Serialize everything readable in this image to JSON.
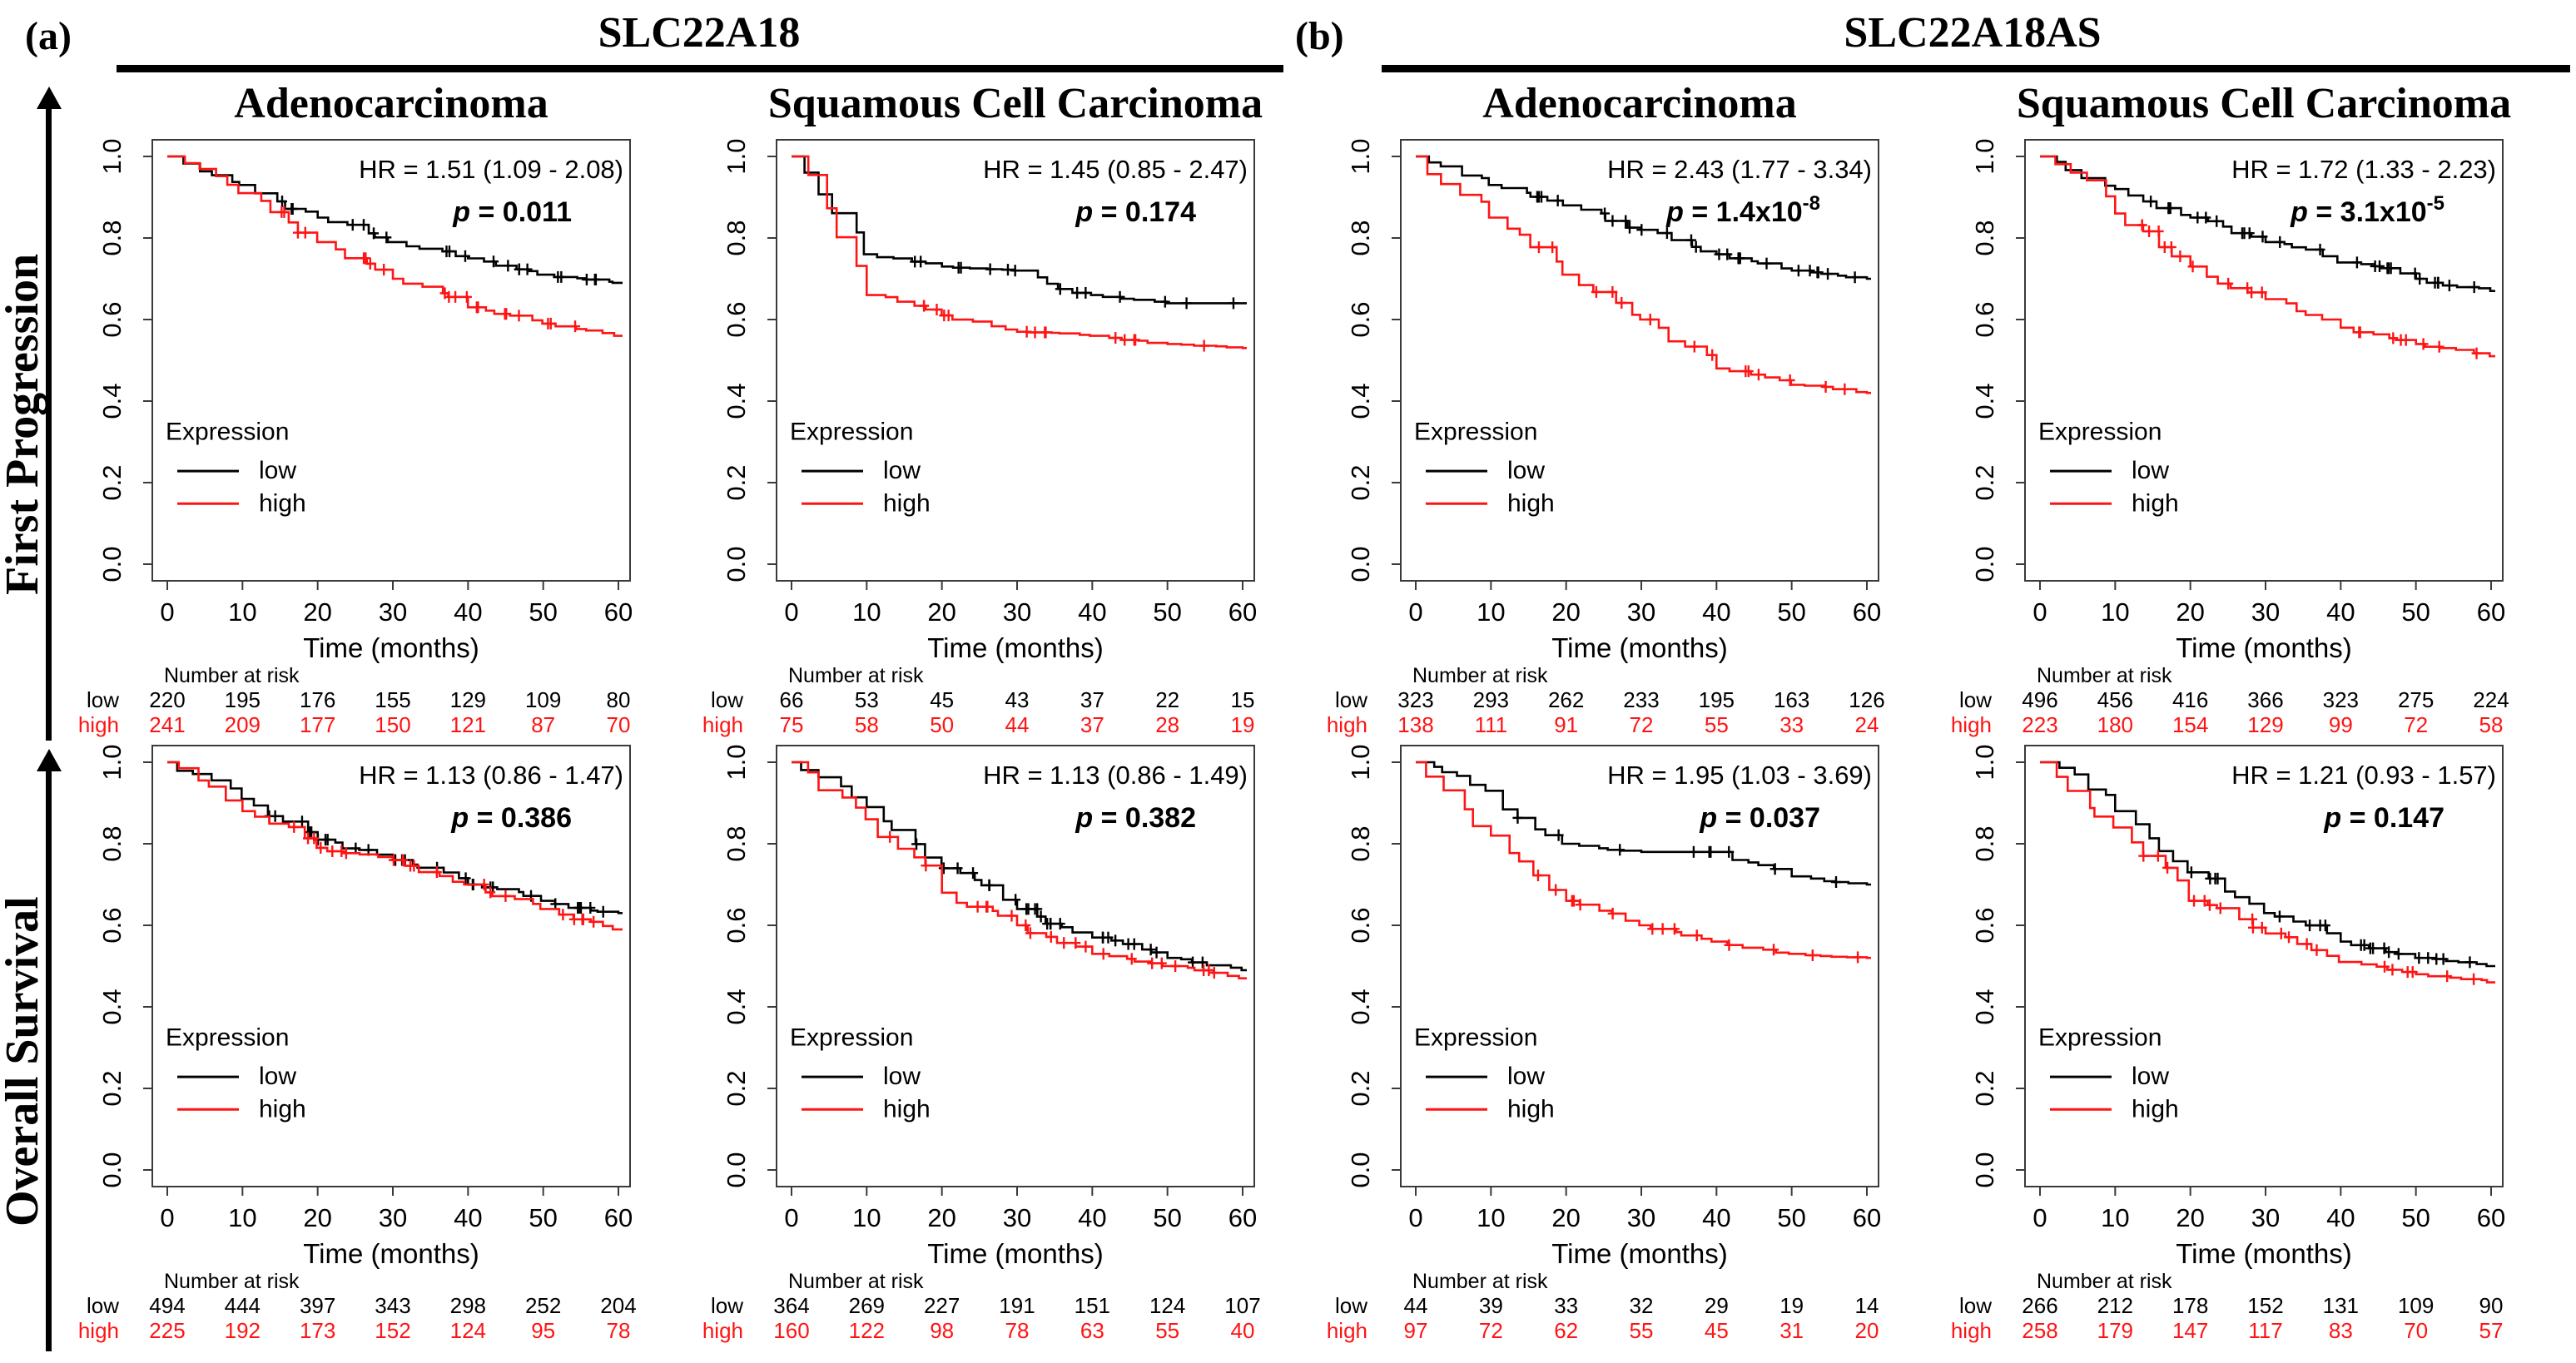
{
  "figure": {
    "panel_a_label": "(a)",
    "panel_a_title": "SLC22A18",
    "panel_b_label": "(b)",
    "panel_b_title": "SLC22A18AS",
    "row_labels": [
      "First Progression",
      "Overall Survival"
    ],
    "col_titles": [
      "Adenocarcinoma",
      "Squamous Cell Carcinoma"
    ]
  },
  "shared": {
    "xlabel": "Time (months)",
    "x_ticks": [
      0,
      10,
      20,
      30,
      40,
      50,
      60
    ],
    "y_tick_values": [
      1.0,
      0.8,
      0.6,
      0.4,
      0.2,
      0.0
    ],
    "y_tick_labels": [
      "1.0",
      "0.8",
      "0.6",
      "0.4",
      "0.2",
      "0.0"
    ],
    "legend_title": "Expression",
    "legend": [
      {
        "label": "low",
        "color": "#000000"
      },
      {
        "label": "high",
        "color": "#FF1414"
      }
    ],
    "risk_header": "Number at risk",
    "colors": {
      "low": "#000000",
      "high": "#FF1414"
    }
  },
  "chart_data": [
    {
      "type": "line",
      "gene": "SLC22A18",
      "row": "First Progression",
      "column": "Adenocarcinoma",
      "hr": "HR = 1.51 (1.09 - 2.08)",
      "p": "0.011",
      "x": [
        0,
        10,
        20,
        30,
        40,
        50,
        60
      ],
      "ylim": [
        0.0,
        1.0
      ],
      "series": [
        {
          "name": "low",
          "color": "#000000",
          "values": [
            1.0,
            0.93,
            0.85,
            0.79,
            0.75,
            0.71,
            0.69
          ]
        },
        {
          "name": "high",
          "color": "#FF1414",
          "values": [
            1.0,
            0.91,
            0.79,
            0.7,
            0.63,
            0.59,
            0.56
          ]
        }
      ],
      "risk": {
        "low": [
          220,
          195,
          176,
          155,
          129,
          109,
          80
        ],
        "high": [
          241,
          209,
          177,
          150,
          121,
          87,
          70
        ]
      }
    },
    {
      "type": "line",
      "gene": "SLC22A18",
      "row": "First Progression",
      "column": "Squamous Cell Carcinoma",
      "hr": "HR = 1.45 (0.85 - 2.47)",
      "p": "0.174",
      "x": [
        0,
        10,
        20,
        30,
        40,
        50,
        60
      ],
      "ylim": [
        0.0,
        1.0
      ],
      "series": [
        {
          "name": "low",
          "color": "#000000",
          "values": [
            1.0,
            0.76,
            0.73,
            0.72,
            0.66,
            0.64,
            0.64
          ]
        },
        {
          "name": "high",
          "color": "#FF1414",
          "values": [
            1.0,
            0.66,
            0.61,
            0.57,
            0.56,
            0.54,
            0.53
          ]
        }
      ],
      "risk": {
        "low": [
          66,
          53,
          45,
          43,
          37,
          22,
          15
        ],
        "high": [
          75,
          58,
          50,
          44,
          37,
          28,
          19
        ]
      }
    },
    {
      "type": "line",
      "gene": "SLC22A18AS",
      "row": "First Progression",
      "column": "Adenocarcinoma",
      "hr": "HR = 2.43 (1.77 - 3.34)",
      "p": "1.4x10^-8",
      "x": [
        0,
        10,
        20,
        30,
        40,
        50,
        60
      ],
      "ylim": [
        0.0,
        1.0
      ],
      "series": [
        {
          "name": "low",
          "color": "#000000",
          "values": [
            1.0,
            0.93,
            0.88,
            0.82,
            0.76,
            0.72,
            0.7
          ]
        },
        {
          "name": "high",
          "color": "#FF1414",
          "values": [
            1.0,
            0.85,
            0.71,
            0.6,
            0.48,
            0.44,
            0.42
          ]
        }
      ],
      "risk": {
        "low": [
          323,
          293,
          262,
          233,
          195,
          163,
          126
        ],
        "high": [
          138,
          111,
          91,
          72,
          55,
          33,
          24
        ]
      }
    },
    {
      "type": "line",
      "gene": "SLC22A18AS",
      "row": "First Progression",
      "column": "Squamous Cell Carcinoma",
      "hr": "HR = 1.72 (1.33 - 2.23)",
      "p": "3.1x10^-5",
      "x": [
        0,
        10,
        20,
        30,
        40,
        50,
        60
      ],
      "ylim": [
        0.0,
        1.0
      ],
      "series": [
        {
          "name": "low",
          "color": "#000000",
          "values": [
            1.0,
            0.92,
            0.85,
            0.79,
            0.74,
            0.7,
            0.67
          ]
        },
        {
          "name": "high",
          "color": "#FF1414",
          "values": [
            1.0,
            0.86,
            0.73,
            0.65,
            0.58,
            0.54,
            0.51
          ]
        }
      ],
      "risk": {
        "low": [
          496,
          456,
          416,
          366,
          323,
          275,
          224
        ],
        "high": [
          223,
          180,
          154,
          129,
          99,
          72,
          58
        ]
      }
    },
    {
      "type": "line",
      "gene": "SLC22A18",
      "row": "Overall Survival",
      "column": "Adenocarcinoma",
      "hr": "HR = 1.13 (0.86 - 1.47)",
      "p": "0.386",
      "x": [
        0,
        10,
        20,
        30,
        40,
        50,
        60
      ],
      "ylim": [
        0.0,
        1.0
      ],
      "series": [
        {
          "name": "low",
          "color": "#000000",
          "values": [
            1.0,
            0.91,
            0.81,
            0.76,
            0.7,
            0.66,
            0.63
          ]
        },
        {
          "name": "high",
          "color": "#FF1414",
          "values": [
            1.0,
            0.88,
            0.79,
            0.76,
            0.7,
            0.64,
            0.59
          ]
        }
      ],
      "risk": {
        "low": [
          494,
          444,
          397,
          343,
          298,
          252,
          204
        ],
        "high": [
          225,
          192,
          173,
          152,
          124,
          95,
          78
        ]
      }
    },
    {
      "type": "line",
      "gene": "SLC22A18",
      "row": "Overall Survival",
      "column": "Squamous Cell Carcinoma",
      "hr": "HR = 1.13 (0.86 - 1.49)",
      "p": "0.382",
      "x": [
        0,
        10,
        20,
        30,
        40,
        50,
        60
      ],
      "ylim": [
        0.0,
        1.0
      ],
      "series": [
        {
          "name": "low",
          "color": "#000000",
          "values": [
            1.0,
            0.89,
            0.74,
            0.64,
            0.57,
            0.52,
            0.49
          ]
        },
        {
          "name": "high",
          "color": "#FF1414",
          "values": [
            1.0,
            0.86,
            0.68,
            0.6,
            0.53,
            0.5,
            0.47
          ]
        }
      ],
      "risk": {
        "low": [
          364,
          269,
          227,
          191,
          151,
          124,
          107
        ],
        "high": [
          160,
          122,
          98,
          78,
          63,
          55,
          40
        ]
      }
    },
    {
      "type": "line",
      "gene": "SLC22A18AS",
      "row": "Overall Survival",
      "column": "Adenocarcinoma",
      "hr": "HR = 1.95 (1.03 - 3.69)",
      "p": "0.037",
      "x": [
        0,
        10,
        20,
        30,
        40,
        50,
        60
      ],
      "ylim": [
        0.0,
        1.0
      ],
      "series": [
        {
          "name": "low",
          "color": "#000000",
          "values": [
            1.0,
            0.93,
            0.8,
            0.78,
            0.78,
            0.72,
            0.7
          ]
        },
        {
          "name": "high",
          "color": "#FF1414",
          "values": [
            1.0,
            0.82,
            0.66,
            0.6,
            0.56,
            0.53,
            0.52
          ]
        }
      ],
      "risk": {
        "low": [
          44,
          39,
          33,
          32,
          29,
          19,
          14
        ],
        "high": [
          97,
          72,
          62,
          55,
          45,
          31,
          20
        ]
      }
    },
    {
      "type": "line",
      "gene": "SLC22A18AS",
      "row": "Overall Survival",
      "column": "Squamous Cell Carcinoma",
      "hr": "HR = 1.21 (0.93 - 1.57)",
      "p": "0.147",
      "x": [
        0,
        10,
        20,
        30,
        40,
        50,
        60
      ],
      "ylim": [
        0.0,
        1.0
      ],
      "series": [
        {
          "name": "low",
          "color": "#000000",
          "values": [
            1.0,
            0.88,
            0.73,
            0.63,
            0.56,
            0.52,
            0.5
          ]
        },
        {
          "name": "high",
          "color": "#FF1414",
          "values": [
            1.0,
            0.84,
            0.66,
            0.58,
            0.51,
            0.48,
            0.46
          ]
        }
      ],
      "risk": {
        "low": [
          266,
          212,
          178,
          152,
          131,
          109,
          90
        ],
        "high": [
          258,
          179,
          147,
          117,
          83,
          70,
          57
        ]
      }
    }
  ]
}
